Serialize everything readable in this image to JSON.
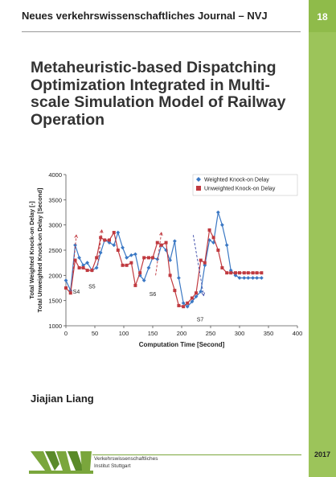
{
  "journal": {
    "name": "Neues verkehrswissenschaftliches Journal – NVJ",
    "issue": "18"
  },
  "book": {
    "title": "Metaheuristic-based Dispatching Optimization Integrated in Multi-scale Simulation Model of Railway Operation",
    "author": "Jiajian Liang",
    "year": "2017"
  },
  "publisher": {
    "line1": "Verkehrswissenschaftliches",
    "line2": "Institut Stuttgart",
    "logo_text": "VWI"
  },
  "colors": {
    "accent_green": "#9cc45a",
    "series_blue": "#3b78c4",
    "series_red": "#c0393f",
    "annotation_red": "#c0393f",
    "annotation_blue": "#3b4aa8"
  },
  "chart_data": {
    "type": "line",
    "xlabel": "Computation Time [Second]",
    "ylabel_line1": "Total Weighted Knock-on Delay [-]",
    "ylabel_line2": "Total Unweighted Knock-on Delay [Second]",
    "xlim": [
      0,
      400
    ],
    "ylim": [
      1000,
      4000
    ],
    "xticks": [
      "0",
      "50",
      "100",
      "150",
      "200",
      "250",
      "300",
      "350",
      "400"
    ],
    "yticks": [
      "1000",
      "1500",
      "2000",
      "2500",
      "3000",
      "3500",
      "4000"
    ],
    "legend_position": "top-right",
    "grid": false,
    "series": [
      {
        "name": "Weighted Knock-on Delay",
        "color": "#3b78c4",
        "marker": "diamond",
        "x": [
          0,
          8,
          16,
          23,
          30,
          37,
          45,
          53,
          60,
          67,
          75,
          83,
          90,
          98,
          105,
          113,
          120,
          128,
          135,
          143,
          150,
          158,
          165,
          173,
          180,
          188,
          195,
          203,
          210,
          218,
          225,
          233,
          240,
          248,
          255,
          263,
          270,
          278,
          285,
          293,
          300,
          308,
          315,
          323,
          330,
          338
        ],
        "y": [
          1900,
          1700,
          2600,
          2350,
          2200,
          2250,
          2100,
          2150,
          2450,
          2700,
          2650,
          2600,
          2850,
          2550,
          2350,
          2400,
          2420,
          2000,
          1900,
          2150,
          2350,
          2320,
          2600,
          2500,
          2300,
          2680,
          1950,
          1450,
          1380,
          1480,
          1580,
          1680,
          2200,
          2700,
          2650,
          3250,
          3000,
          2600,
          2100,
          2000,
          1950,
          1950,
          1950,
          1950,
          1950,
          1950
        ]
      },
      {
        "name": "Unweighted Knock-on Delay",
        "color": "#c0393f",
        "marker": "square",
        "x": [
          0,
          8,
          16,
          23,
          30,
          37,
          45,
          53,
          60,
          67,
          75,
          83,
          90,
          98,
          105,
          113,
          120,
          128,
          135,
          143,
          150,
          158,
          165,
          173,
          180,
          188,
          195,
          203,
          210,
          218,
          225,
          233,
          240,
          248,
          255,
          263,
          270,
          278,
          285,
          293,
          300,
          308,
          315,
          323,
          330,
          338
        ],
        "y": [
          1750,
          1650,
          2300,
          2150,
          2150,
          2100,
          2100,
          2350,
          2750,
          2700,
          2700,
          2850,
          2500,
          2200,
          2200,
          2250,
          1800,
          2050,
          2350,
          2350,
          2350,
          2650,
          2600,
          2650,
          2000,
          1700,
          1400,
          1380,
          1450,
          1550,
          1650,
          2300,
          2250,
          2900,
          2750,
          2500,
          2150,
          2050,
          2050,
          2050,
          2050,
          2050,
          2050,
          2050,
          2050,
          2050
        ]
      }
    ],
    "annotations": [
      {
        "text": "S4",
        "x": 18,
        "y": 1800,
        "arrow_color": "#c0393f"
      },
      {
        "text": "S5",
        "x": 45,
        "y": 1900,
        "arrow_color": "#c0393f"
      },
      {
        "text": "S6",
        "x": 150,
        "y": 1750,
        "arrow_color": "#c0393f"
      },
      {
        "text": "S7",
        "x": 232,
        "y": 1250,
        "arrow_color": "#3b4aa8"
      }
    ]
  }
}
